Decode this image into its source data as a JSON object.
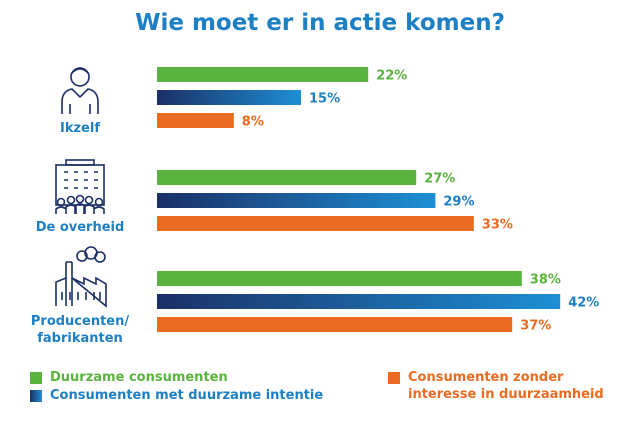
{
  "chart_data": {
    "type": "bar",
    "orientation": "horizontal",
    "title": "Wie moet er in actie komen?",
    "categories": [
      "Ikzelf",
      "De overheid",
      "Producenten/ fabrikanten"
    ],
    "series": [
      {
        "name": "Duurzame consumenten",
        "values": [
          22,
          27,
          38
        ],
        "color": "#5ab33e"
      },
      {
        "name": "Consumenten met duurzame intentie",
        "values": [
          15,
          29,
          42
        ],
        "color": "#1d7fc4"
      },
      {
        "name": "Consumenten zonder interesse in duurzaamheid",
        "values": [
          8,
          33,
          37
        ],
        "color": "#ea6b22"
      }
    ],
    "value_suffix": "%",
    "xlim": [
      0,
      42
    ],
    "legend": "bottom"
  },
  "icons": [
    "person-icon",
    "government-building-icon",
    "factory-icon"
  ],
  "colors": {
    "title": "#1d7fc4",
    "dark_blue": "#1b2f66"
  }
}
